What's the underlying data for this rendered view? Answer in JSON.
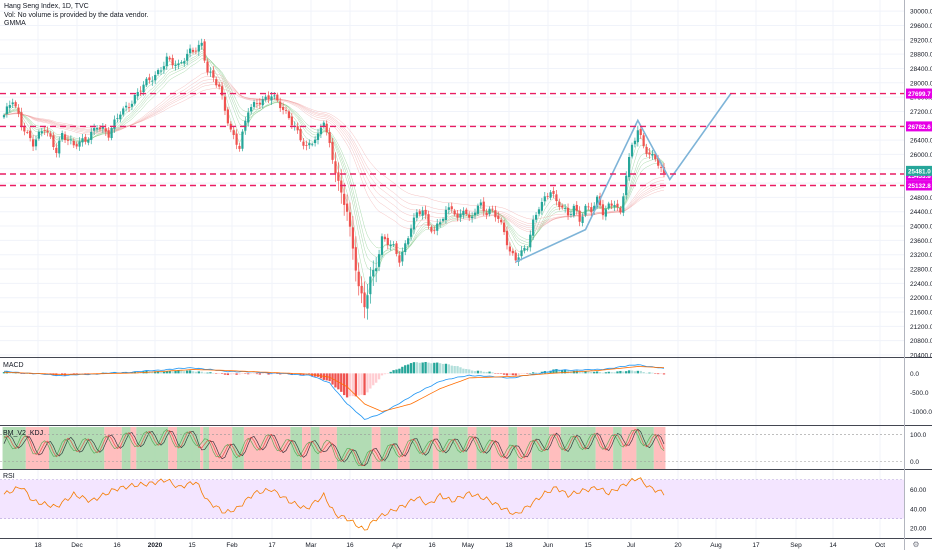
{
  "header": {
    "title": "Hang Seng Index, 1D, TVC",
    "volume_note": "Vol: No volume is provided by the data vendor.",
    "indicator": "GMMA"
  },
  "colors": {
    "up": "#26a69a",
    "down": "#ef5350",
    "hline": "#e91e63",
    "hline_label": "#e600e6",
    "last_price_bg": "#26a69a",
    "projection": "#7eb4d8",
    "macd_line": "#2196f3",
    "signal_line": "#ff6d00",
    "rsi_line": "#f57c00",
    "rsi_band": "#f3e5ff",
    "zone_green": "#a5d6a7",
    "zone_red": "#ffb3b3",
    "grid": "#f0f3fa",
    "axis_text": "#131722"
  },
  "panels": {
    "macd_label": "MACD",
    "bm_label": "BM_V2_KDJ",
    "rsi_label": "RSI"
  },
  "chart_data": [
    {
      "type": "candlestick",
      "title": "Hang Seng Index, 1D, TVC",
      "ylim": [
        20400,
        30200
      ],
      "y_ticks": [
        "30000.0",
        "29600.0",
        "29200.0",
        "28800.0",
        "28400.0",
        "28000.0",
        "27600.0",
        "27200.0",
        "26800.0",
        "26400.0",
        "26000.0",
        "25600.0",
        "25200.0",
        "24800.0",
        "24400.0",
        "24000.0",
        "23600.0",
        "23200.0",
        "22800.0",
        "22400.0",
        "22000.0",
        "21600.0",
        "21200.0",
        "20800.0",
        "20400.0"
      ],
      "x_tick_labels": [
        "18",
        "Dec",
        "16",
        "2020",
        "15",
        "Feb",
        "17",
        "Mar",
        "16",
        "Apr",
        "16",
        "May",
        "18",
        "Jun",
        "15",
        "Jul",
        "20",
        "Aug",
        "17",
        "Sep",
        "14",
        "Oct"
      ],
      "horizontal_levels": [
        {
          "value": 27699.7,
          "label": "27699.7"
        },
        {
          "value": 26782.6,
          "label": "26782.6"
        },
        {
          "value": 25453.8,
          "label": "25453.8"
        },
        {
          "value": 25132.8,
          "label": "25132.8"
        }
      ],
      "last_price": {
        "value": 25481.0,
        "label": "25481.0"
      },
      "projection_path": [
        {
          "bar": 176,
          "value": 23000
        },
        {
          "bar": 200,
          "value": 23900
        },
        {
          "bar": 218,
          "value": 26950
        },
        {
          "bar": 229,
          "value": 25300
        },
        {
          "bar": 250,
          "value": 27700
        }
      ],
      "close_keypoints": [
        [
          0,
          27050
        ],
        [
          3,
          27500
        ],
        [
          6,
          26900
        ],
        [
          10,
          26300
        ],
        [
          14,
          26700
        ],
        [
          18,
          26150
        ],
        [
          20,
          26600
        ],
        [
          24,
          26200
        ],
        [
          28,
          26400
        ],
        [
          32,
          26850
        ],
        [
          36,
          26500
        ],
        [
          40,
          27200
        ],
        [
          44,
          27500
        ],
        [
          48,
          27900
        ],
        [
          52,
          28200
        ],
        [
          56,
          28700
        ],
        [
          60,
          28400
        ],
        [
          64,
          28900
        ],
        [
          68,
          29100
        ],
        [
          70,
          28300
        ],
        [
          74,
          27850
        ],
        [
          78,
          26700
        ],
        [
          81,
          26200
        ],
        [
          84,
          27200
        ],
        [
          88,
          27500
        ],
        [
          92,
          27700
        ],
        [
          96,
          27200
        ],
        [
          100,
          26800
        ],
        [
          104,
          26200
        ],
        [
          108,
          26450
        ],
        [
          110,
          26950
        ],
        [
          114,
          25600
        ],
        [
          116,
          24900
        ],
        [
          118,
          24400
        ],
        [
          120,
          23300
        ],
        [
          122,
          22300
        ],
        [
          124,
          21800
        ],
        [
          126,
          22600
        ],
        [
          128,
          22900
        ],
        [
          130,
          23600
        ],
        [
          132,
          23500
        ],
        [
          134,
          23400
        ],
        [
          136,
          23100
        ],
        [
          138,
          23500
        ],
        [
          140,
          24000
        ],
        [
          142,
          24300
        ],
        [
          144,
          24400
        ],
        [
          146,
          24000
        ],
        [
          148,
          23900
        ],
        [
          150,
          24200
        ],
        [
          152,
          24400
        ],
        [
          154,
          24500
        ],
        [
          156,
          24100
        ],
        [
          158,
          24500
        ],
        [
          160,
          24200
        ],
        [
          162,
          24500
        ],
        [
          164,
          24600
        ],
        [
          166,
          24300
        ],
        [
          168,
          24400
        ],
        [
          170,
          24200
        ],
        [
          172,
          23900
        ],
        [
          174,
          23300
        ],
        [
          176,
          23100
        ],
        [
          178,
          23200
        ],
        [
          180,
          23400
        ],
        [
          182,
          24100
        ],
        [
          184,
          24600
        ],
        [
          186,
          24800
        ],
        [
          188,
          25000
        ],
        [
          190,
          24600
        ],
        [
          192,
          24500
        ],
        [
          194,
          24300
        ],
        [
          196,
          24600
        ],
        [
          198,
          24200
        ],
        [
          200,
          24500
        ],
        [
          202,
          24400
        ],
        [
          204,
          24700
        ],
        [
          206,
          24400
        ],
        [
          208,
          24600
        ],
        [
          210,
          24700
        ],
        [
          212,
          24300
        ],
        [
          214,
          25400
        ],
        [
          216,
          26200
        ],
        [
          218,
          26700
        ],
        [
          220,
          26300
        ],
        [
          222,
          26000
        ],
        [
          224,
          25900
        ],
        [
          226,
          25500
        ],
        [
          227,
          25481
        ]
      ],
      "series_notes": "GMMA short (green) and long (red) moving average bands overlay the price"
    },
    {
      "type": "line",
      "title": "MACD",
      "ylim": [
        -1300,
        350
      ],
      "y_ticks": [
        "0.0",
        "-500.0",
        "-1000.0"
      ],
      "series": [
        {
          "name": "MACD",
          "keypoints": [
            [
              0,
              50
            ],
            [
              20,
              -60
            ],
            [
              45,
              40
            ],
            [
              65,
              150
            ],
            [
              75,
              60
            ],
            [
              90,
              20
            ],
            [
              105,
              -50
            ],
            [
              112,
              -250
            ],
            [
              118,
              -800
            ],
            [
              124,
              -1200
            ],
            [
              130,
              -1050
            ],
            [
              140,
              -600
            ],
            [
              150,
              -200
            ],
            [
              160,
              -50
            ],
            [
              175,
              -120
            ],
            [
              190,
              80
            ],
            [
              205,
              100
            ],
            [
              218,
              230
            ],
            [
              227,
              120
            ]
          ]
        },
        {
          "name": "Signal",
          "keypoints": [
            [
              0,
              30
            ],
            [
              20,
              -30
            ],
            [
              45,
              10
            ],
            [
              65,
              100
            ],
            [
              75,
              80
            ],
            [
              90,
              30
            ],
            [
              105,
              -20
            ],
            [
              112,
              -100
            ],
            [
              118,
              -350
            ],
            [
              124,
              -800
            ],
            [
              130,
              -1000
            ],
            [
              140,
              -800
            ],
            [
              150,
              -400
            ],
            [
              160,
              -120
            ],
            [
              175,
              -80
            ],
            [
              190,
              10
            ],
            [
              205,
              80
            ],
            [
              218,
              180
            ],
            [
              227,
              150
            ]
          ]
        }
      ]
    },
    {
      "type": "line",
      "title": "BM_V2_KDJ",
      "ylim": [
        -20,
        125
      ],
      "y_ticks": [
        "100.0",
        "0.0"
      ],
      "zone_runs": [
        [
          "g",
          8
        ],
        [
          "r",
          8
        ],
        [
          "g",
          19
        ],
        [
          "r",
          6
        ],
        [
          "g",
          3
        ],
        [
          "r",
          2
        ],
        [
          "g",
          11
        ],
        [
          "r",
          3
        ],
        [
          "g",
          8
        ],
        [
          "r",
          1
        ],
        [
          "g",
          2
        ],
        [
          "r",
          8
        ],
        [
          "g",
          4
        ],
        [
          "r",
          16
        ],
        [
          "g",
          4
        ],
        [
          "r",
          3
        ],
        [
          "g",
          3
        ],
        [
          "r",
          6
        ],
        [
          "g",
          12
        ],
        [
          "r",
          3
        ],
        [
          "g",
          6
        ],
        [
          "r",
          4
        ],
        [
          "g",
          8
        ],
        [
          "r",
          2
        ],
        [
          "g",
          10
        ],
        [
          "r",
          3
        ],
        [
          "g",
          5
        ],
        [
          "r",
          6
        ],
        [
          "g",
          3
        ],
        [
          "r",
          5
        ],
        [
          "g",
          6
        ],
        [
          "r",
          4
        ],
        [
          "g",
          12
        ],
        [
          "r",
          6
        ],
        [
          "g",
          3
        ],
        [
          "r",
          5
        ],
        [
          "g",
          6
        ],
        [
          "r",
          4
        ],
        [
          "g",
          8
        ],
        [
          "r",
          5
        ]
      ]
    },
    {
      "type": "line",
      "title": "RSI",
      "ylim": [
        12,
        78
      ],
      "y_ticks": [
        "60.00",
        "40.00",
        "20.00"
      ],
      "band": [
        30,
        70
      ],
      "series": [
        {
          "name": "RSI",
          "keypoints": [
            [
              0,
              55
            ],
            [
              6,
              63
            ],
            [
              10,
              48
            ],
            [
              18,
              42
            ],
            [
              24,
              55
            ],
            [
              30,
              48
            ],
            [
              38,
              60
            ],
            [
              44,
              64
            ],
            [
              50,
              66
            ],
            [
              56,
              70
            ],
            [
              60,
              62
            ],
            [
              66,
              68
            ],
            [
              70,
              48
            ],
            [
              76,
              36
            ],
            [
              80,
              40
            ],
            [
              86,
              56
            ],
            [
              92,
              60
            ],
            [
              98,
              48
            ],
            [
              104,
              40
            ],
            [
              110,
              54
            ],
            [
              114,
              34
            ],
            [
              118,
              30
            ],
            [
              122,
              22
            ],
            [
              124,
              18
            ],
            [
              128,
              30
            ],
            [
              132,
              36
            ],
            [
              138,
              44
            ],
            [
              142,
              52
            ],
            [
              146,
              44
            ],
            [
              150,
              54
            ],
            [
              154,
              48
            ],
            [
              160,
              56
            ],
            [
              166,
              50
            ],
            [
              172,
              40
            ],
            [
              176,
              34
            ],
            [
              180,
              42
            ],
            [
              186,
              56
            ],
            [
              190,
              62
            ],
            [
              194,
              54
            ],
            [
              198,
              58
            ],
            [
              204,
              62
            ],
            [
              208,
              56
            ],
            [
              214,
              66
            ],
            [
              218,
              72
            ],
            [
              222,
              62
            ],
            [
              227,
              56
            ]
          ]
        }
      ]
    }
  ]
}
